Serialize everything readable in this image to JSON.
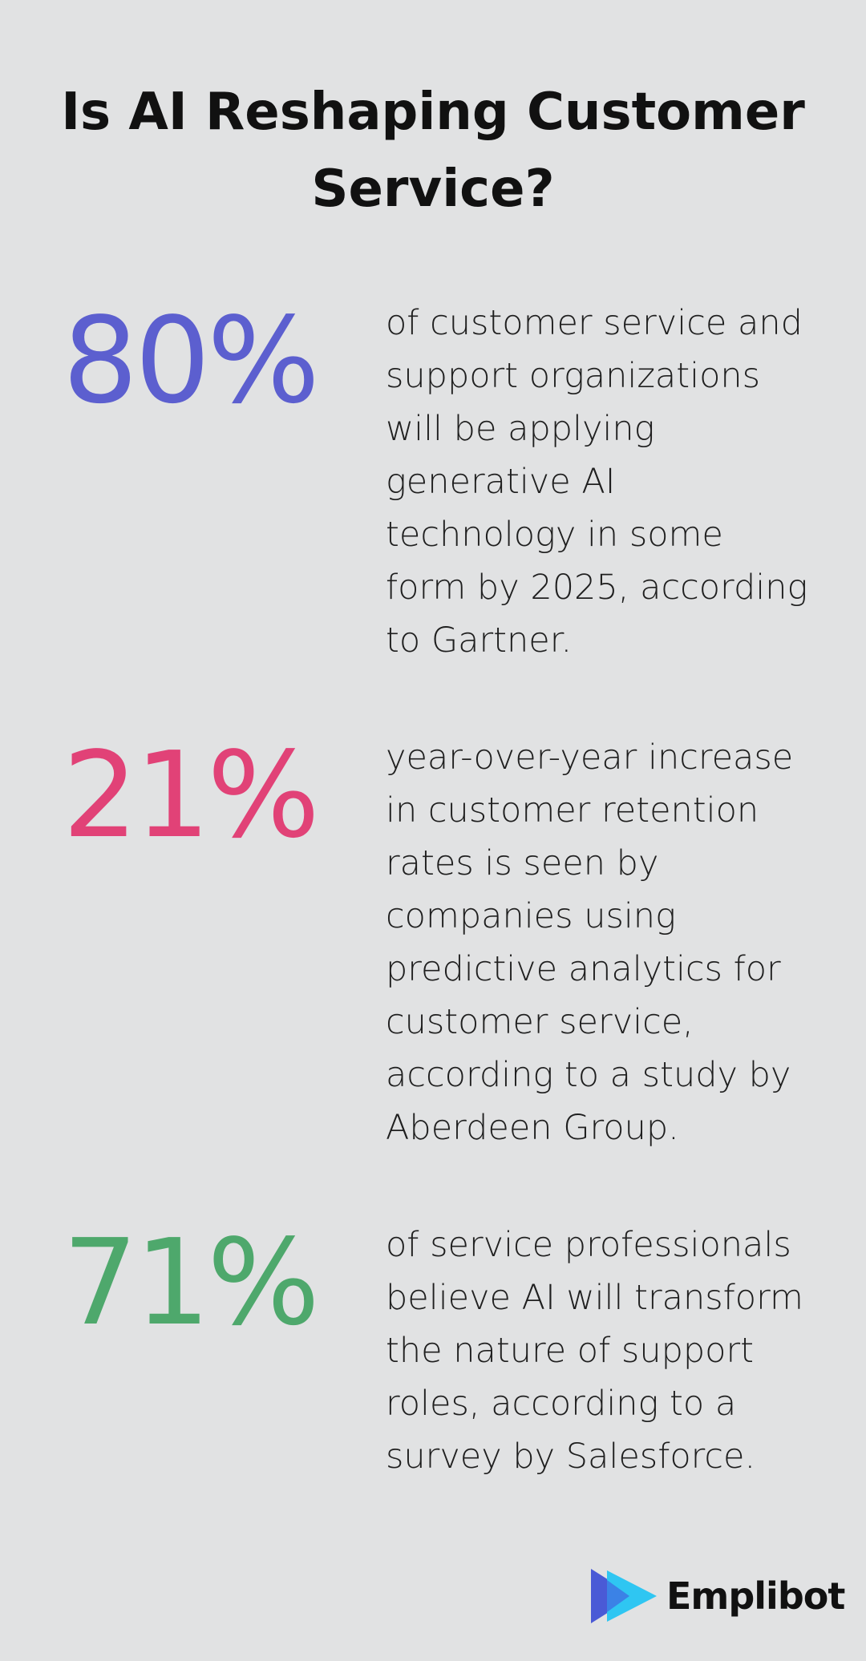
{
  "title": "Is AI Reshaping Customer Service?",
  "stats": [
    {
      "value": "80%",
      "color": "#5c5fcf",
      "description": "of customer service and support organizations will be applying generative AI technology in some form by 2025, according to Gartner."
    },
    {
      "value": "21%",
      "color": "#e14277",
      "description": "year-over-year increase in customer retention rates is seen by companies using predictive analytics for customer service, according to a study by Aberdeen Group."
    },
    {
      "value": "71%",
      "color": "#4ea86c",
      "description": "of service professionals believe AI will transform the nature of support roles, according to a survey by Salesforce."
    }
  ],
  "brand": {
    "name": "Emplibot",
    "icon": "play-triangle-logo-icon",
    "colors": [
      "#4a5ad6",
      "#2fc6f2"
    ]
  }
}
